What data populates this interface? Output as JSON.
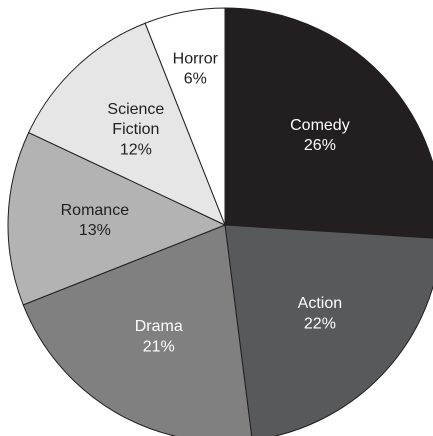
{
  "chart_data": {
    "type": "pie",
    "categories": [
      "Comedy",
      "Action",
      "Drama",
      "Romance",
      "Science Fiction",
      "Horror"
    ],
    "values": [
      26,
      22,
      21,
      13,
      12,
      6
    ],
    "value_labels": [
      "26%",
      "22%",
      "21%",
      "13%",
      "12%",
      "6%"
    ],
    "colors": [
      "#231f20",
      "#58595b",
      "#808080",
      "#b3b3b3",
      "#e6e6e6",
      "#ffffff"
    ]
  }
}
